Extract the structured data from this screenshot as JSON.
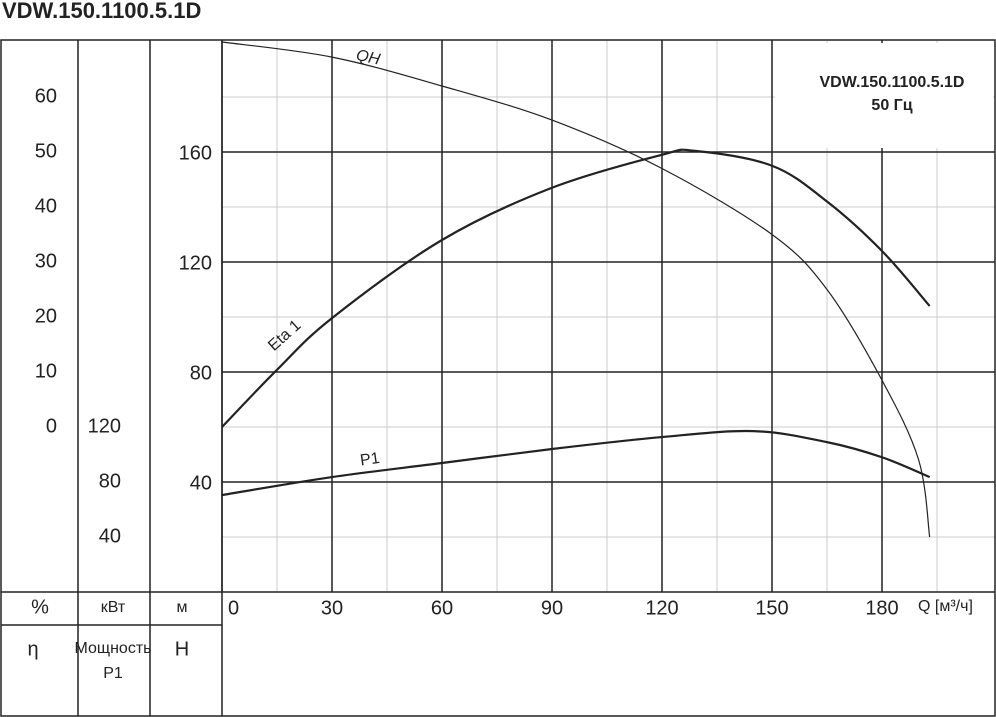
{
  "chart_data": {
    "type": "line",
    "title": "VDW.150.1100.5.1D",
    "annotation": [
      "VDW.150.1100.5.1D",
      "50 Гц"
    ],
    "x_label": "Q [м³/ч]",
    "xlim": [
      0,
      210
    ],
    "xticks": [
      0,
      30,
      60,
      90,
      120,
      150,
      180
    ],
    "y_unit": "м",
    "y_label": "H",
    "ylim": [
      0,
      200
    ],
    "yticks": [
      40,
      80,
      120,
      160
    ],
    "y2_unit": "%",
    "y2_label": "η",
    "y2lim": [
      -30,
      70
    ],
    "y2ticks": [
      0,
      10,
      20,
      30,
      40,
      50,
      60
    ],
    "y3_unit": "кВт",
    "y3_label": [
      "Мощность",
      "P1"
    ],
    "y3lim": [
      0,
      400
    ],
    "y3ticks": [
      40,
      80,
      120
    ],
    "grid": true,
    "series": [
      {
        "name": "QH",
        "color": "#222222",
        "axis": "y",
        "x": [
          0,
          30,
          60,
          90,
          120,
          150,
          165,
          180,
          190,
          193
        ],
        "values": [
          200,
          194.5,
          184,
          171.6,
          154,
          130,
          110,
          77,
          48,
          20
        ]
      },
      {
        "name": "Eta 1",
        "color": "#222222",
        "axis": "y2",
        "x": [
          0,
          15,
          30,
          60,
          90,
          120,
          129,
          150,
          165,
          180,
          193
        ],
        "values": [
          0,
          10.4,
          19.8,
          34,
          43.5,
          49.5,
          50.2,
          47.5,
          41,
          32,
          22
        ]
      },
      {
        "name": "P1",
        "color": "#222222",
        "axis": "y3",
        "x": [
          0,
          30,
          60,
          90,
          120,
          145,
          165,
          180,
          193
        ],
        "values": [
          70.5,
          83.6,
          93.8,
          104,
          112.7,
          117,
          109,
          98,
          83.6
        ]
      }
    ]
  }
}
